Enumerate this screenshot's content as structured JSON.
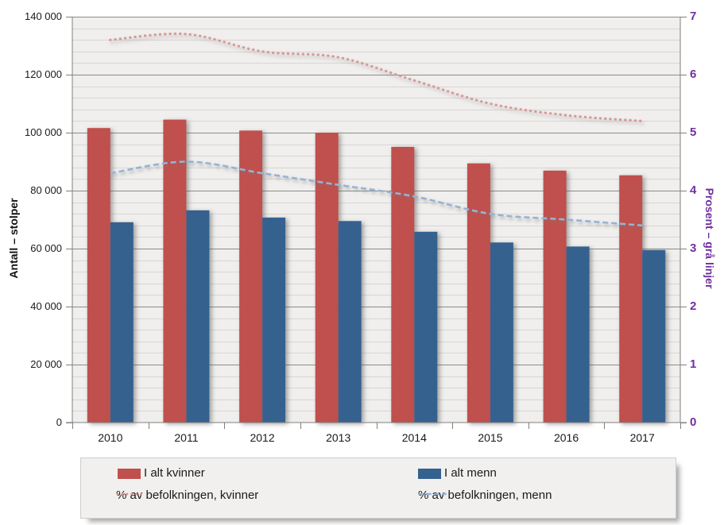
{
  "chart_data": {
    "type": "combo_bar_line",
    "categories": [
      "2010",
      "2011",
      "2012",
      "2013",
      "2014",
      "2015",
      "2016",
      "2017"
    ],
    "series": [
      {
        "name": "I alt kvinner",
        "type": "bar",
        "axis": "left",
        "color": "#C0504D",
        "values": [
          101600,
          104500,
          100700,
          100000,
          95100,
          89400,
          86900,
          85300
        ]
      },
      {
        "name": "I alt menn",
        "type": "bar",
        "axis": "left",
        "color": "#35618F",
        "values": [
          69100,
          73200,
          70700,
          69500,
          65800,
          62100,
          60700,
          59500
        ]
      },
      {
        "name": "% av befolkningen, kvinner",
        "type": "line",
        "line_style": "dotted",
        "axis": "right",
        "color": "#D99694",
        "values": [
          6.6,
          6.7,
          6.4,
          6.3,
          5.9,
          5.5,
          5.3,
          5.2
        ]
      },
      {
        "name": "% av befolkningen, menn",
        "type": "line",
        "line_style": "dashed",
        "axis": "right",
        "color": "#95B3D7",
        "values": [
          4.3,
          4.5,
          4.3,
          4.1,
          3.9,
          3.6,
          3.5,
          3.4
        ]
      }
    ],
    "left_axis": {
      "title": "Antall – stolper",
      "min": 0,
      "max": 140000,
      "major_step": 20000,
      "minor_step": 4000,
      "ticks": [
        "140 000",
        "120 000",
        "100 000",
        "80 000",
        "60 000",
        "40 000",
        "20 000",
        "0"
      ]
    },
    "right_axis": {
      "title": "Prosent – grå linjer",
      "min": 0,
      "max": 7,
      "major_step": 1,
      "color": "#7030A0",
      "ticks": [
        "7",
        "6",
        "5",
        "4",
        "3",
        "2",
        "1",
        "0"
      ]
    },
    "legend": {
      "position": "bottom"
    },
    "plot": {
      "background": "#F0EFED",
      "minor_grid_color": "#D8D6D4",
      "major_grid_color": "#8C8C8C",
      "axis_color": "#7F7F7F"
    }
  }
}
